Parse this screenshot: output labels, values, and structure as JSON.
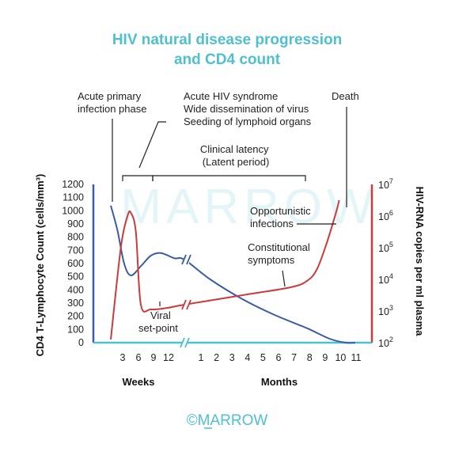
{
  "chart_data": {
    "type": "line",
    "title": [
      "HIV natural disease progression",
      "and CD4 count"
    ],
    "y_left": {
      "label": "CD4 T-Lymphocyte Count (cells/mm³)",
      "ticks": [
        0,
        100,
        200,
        300,
        400,
        500,
        600,
        700,
        800,
        900,
        1000,
        1100,
        1200
      ],
      "range": [
        0,
        1200
      ],
      "color": "#3a5ba8"
    },
    "y_right": {
      "label": "HIV-RNA copies per ml plasma",
      "ticks": [
        {
          "base": "10",
          "exp": "2"
        },
        {
          "base": "10",
          "exp": "3"
        },
        {
          "base": "10",
          "exp": "4"
        },
        {
          "base": "10",
          "exp": "5"
        },
        {
          "base": "10",
          "exp": "6"
        },
        {
          "base": "10",
          "exp": "7"
        }
      ],
      "scale": "log",
      "range_exp": [
        2,
        7
      ],
      "color": "#cc3b3b"
    },
    "x_axis": {
      "segments": [
        {
          "label": "Weeks",
          "ticks": [
            "3",
            "6",
            "9",
            "12"
          ]
        },
        {
          "label": "Months",
          "ticks": [
            "1",
            "2",
            "3",
            "4",
            "5",
            "6",
            "7",
            "8",
            "9",
            "10",
            "11"
          ]
        }
      ],
      "axis_break": true
    },
    "series": [
      {
        "color": "#3a5ba8",
        "axis": "left",
        "points": [
          [
            0,
            1040
          ],
          [
            2,
            850
          ],
          [
            4,
            600
          ],
          [
            6,
            510
          ],
          [
            9,
            580
          ],
          [
            12,
            660
          ],
          [
            15,
            680
          ],
          [
            19,
            640
          ],
          [
            22,
            630
          ],
          [
            30,
            480
          ],
          [
            40,
            330
          ],
          [
            50,
            210
          ],
          [
            60,
            110
          ],
          [
            67,
            30
          ],
          [
            72,
            0
          ],
          [
            75,
            0
          ]
        ]
      },
      {
        "color": "#cc3b3b",
        "axis": "right",
        "points": [
          [
            0,
            2.1
          ],
          [
            3,
            5.0
          ],
          [
            5,
            6.0
          ],
          [
            6,
            6.1
          ],
          [
            7.5,
            5.5
          ],
          [
            9,
            3.2
          ],
          [
            12,
            3.05
          ],
          [
            17,
            3.1
          ],
          [
            22,
            3.2
          ],
          [
            40,
            3.5
          ],
          [
            55,
            3.75
          ],
          [
            60,
            3.95
          ],
          [
            63,
            4.3
          ],
          [
            66,
            5.1
          ],
          [
            69,
            6.1
          ],
          [
            70,
            6.5
          ]
        ]
      }
    ],
    "annotations": [
      {
        "id": "acute-primary",
        "lines": [
          "Acute primary",
          "infection phase"
        ]
      },
      {
        "id": "acute-hiv",
        "lines": [
          "Acute HIV syndrome",
          "Wide dissemination of virus",
          "Seeding of lymphoid organs"
        ]
      },
      {
        "id": "death",
        "lines": [
          "Death"
        ]
      },
      {
        "id": "latency",
        "lines": [
          "Clinical latency",
          "(Latent period)"
        ]
      },
      {
        "id": "opportunistic",
        "lines": [
          "Opportunistic",
          "infections"
        ]
      },
      {
        "id": "constitutional",
        "lines": [
          "Constitutional",
          "symptoms"
        ]
      },
      {
        "id": "setpoint",
        "lines": [
          "Viral",
          "set-point"
        ]
      }
    ],
    "grid": false
  },
  "watermark": "MARROW",
  "logo": {
    "symbol": "©",
    "text": "MARROW"
  }
}
